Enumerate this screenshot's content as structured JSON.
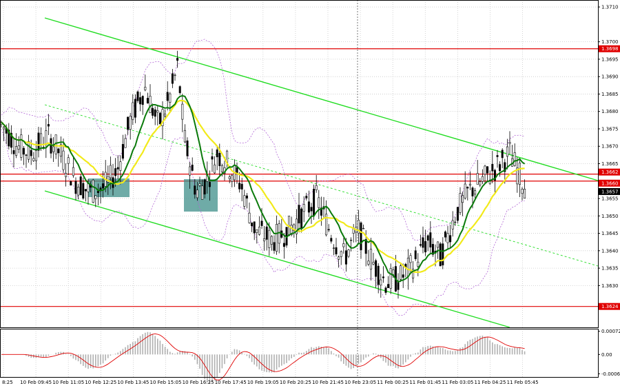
{
  "chart_data": {
    "type": "candlestick",
    "grid": true,
    "price_axis": {
      "range": [
        1.3618,
        1.3712
      ],
      "ticks": [
        "1.3710",
        "1.3700",
        "1.3695",
        "1.3690",
        "1.3685",
        "1.3680",
        "1.3675",
        "1.3670",
        "1.3665",
        "1.3655",
        "1.3650",
        "1.3645",
        "1.3640",
        "1.3635",
        "1.3630"
      ]
    },
    "time_axis": {
      "ticks": [
        "8:25",
        "10 Feb 09:45",
        "10 Feb 11:05",
        "10 Feb 12:25",
        "10 Feb 13:45",
        "10 Feb 15:05",
        "10 Feb 16:25",
        "10 Feb 17:45",
        "10 Feb 19:05",
        "10 Feb 20:25",
        "10 Feb 21:45",
        "10 Feb 23:05",
        "11 Feb 00:25",
        "11 Feb 01:45",
        "11 Feb 03:05",
        "11 Feb 04:25",
        "11 Feb 05:45"
      ]
    },
    "price_labels": [
      {
        "text": "1.3698",
        "value": 1.3698,
        "color": "#e00000"
      },
      {
        "text": "1.3662",
        "value": 1.3662,
        "color": "#e00000"
      },
      {
        "text": "1.3660",
        "value": 1.366,
        "color": "#e00000"
      },
      {
        "text": "1.3657",
        "value": 1.3657,
        "color": "#000000"
      },
      {
        "text": "1.3624",
        "value": 1.3624,
        "color": "#e00000"
      }
    ],
    "horizontal_levels": [
      1.3698,
      1.3662,
      1.366,
      1.3624
    ],
    "oscillator": {
      "ticks": [
        "0.00072",
        "0.00",
        "-0.0006"
      ],
      "range": [
        -0.0007,
        0.0008
      ]
    },
    "colors": {
      "channel": "#22dd22",
      "level": "#e00000",
      "ma_fast": "#0a7a0a",
      "ma_slow": "#f2ea1a",
      "envelope": "#b266d6",
      "box": "#3f8f8a",
      "histogram": "#b0b0b0",
      "signal": "#e00000"
    }
  }
}
